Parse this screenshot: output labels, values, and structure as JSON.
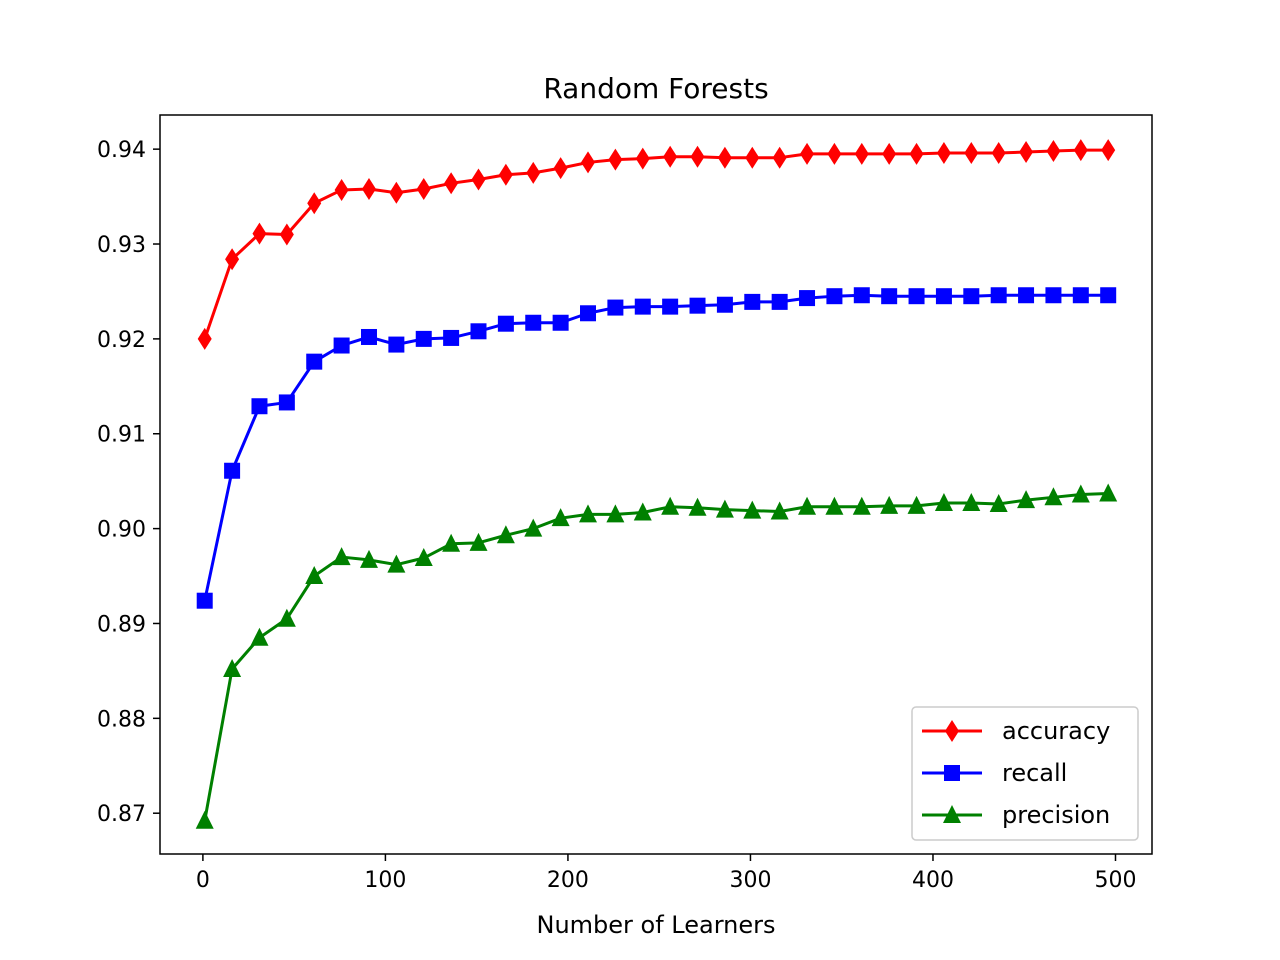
{
  "chart_data": {
    "type": "line",
    "title": "Random Forests",
    "xlabel": "Number of Learners",
    "ylabel": "",
    "xlim": [
      -23.5,
      520
    ],
    "ylim": [
      0.8657,
      0.9436
    ],
    "x_ticks": [
      0,
      100,
      200,
      300,
      400,
      500
    ],
    "x_tick_labels": [
      "0",
      "100",
      "200",
      "300",
      "400",
      "500"
    ],
    "y_ticks": [
      0.87,
      0.88,
      0.89,
      0.9,
      0.91,
      0.92,
      0.93,
      0.94
    ],
    "y_tick_labels": [
      "0.87",
      "0.88",
      "0.89",
      "0.90",
      "0.91",
      "0.92",
      "0.93",
      "0.94"
    ],
    "grid": false,
    "legend_position": "lower-right",
    "x": [
      1,
      16,
      31,
      46,
      61,
      76,
      91,
      106,
      121,
      136,
      151,
      166,
      181,
      196,
      211,
      226,
      241,
      256,
      271,
      286,
      301,
      316,
      331,
      346,
      361,
      376,
      391,
      406,
      421,
      436,
      451,
      466,
      481,
      496
    ],
    "series": [
      {
        "name": "accuracy",
        "color": "#ff0000",
        "marker": "diamond",
        "values": [
          0.92,
          0.9284,
          0.9311,
          0.931,
          0.9343,
          0.9357,
          0.9358,
          0.9354,
          0.9358,
          0.9364,
          0.9368,
          0.9373,
          0.9375,
          0.938,
          0.9386,
          0.9389,
          0.939,
          0.9392,
          0.9392,
          0.9391,
          0.9391,
          0.9391,
          0.9395,
          0.9395,
          0.9395,
          0.9395,
          0.9395,
          0.9396,
          0.9396,
          0.9396,
          0.9397,
          0.9398,
          0.9399,
          0.9399
        ]
      },
      {
        "name": "recall",
        "color": "#0000ff",
        "marker": "square",
        "values": [
          0.8924,
          0.9061,
          0.9129,
          0.9133,
          0.9176,
          0.9193,
          0.9202,
          0.9194,
          0.92,
          0.9201,
          0.9208,
          0.9216,
          0.9217,
          0.9217,
          0.9227,
          0.9233,
          0.9234,
          0.9234,
          0.9235,
          0.9236,
          0.9239,
          0.9239,
          0.9243,
          0.9245,
          0.9246,
          0.9245,
          0.9245,
          0.9245,
          0.9245,
          0.9246,
          0.9246,
          0.9246,
          0.9246,
          0.9246
        ]
      },
      {
        "name": "precision",
        "color": "#008000",
        "marker": "triangle",
        "values": [
          0.8692,
          0.8852,
          0.8885,
          0.8905,
          0.895,
          0.897,
          0.8967,
          0.8962,
          0.8969,
          0.8984,
          0.8985,
          0.8993,
          0.9,
          0.9011,
          0.9015,
          0.9015,
          0.9017,
          0.9023,
          0.9022,
          0.902,
          0.9019,
          0.9018,
          0.9023,
          0.9023,
          0.9023,
          0.9024,
          0.9024,
          0.9027,
          0.9027,
          0.9026,
          0.903,
          0.9033,
          0.9036,
          0.9037
        ]
      }
    ]
  }
}
